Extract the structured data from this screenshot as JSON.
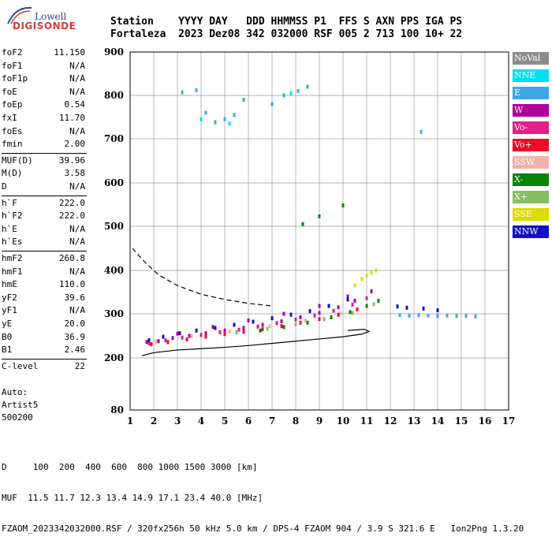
{
  "logo": {
    "top": "Lowell",
    "bottom": "DIGISONDE"
  },
  "header": {
    "row1": "Station    YYYY DAY   DDD HHMMSS P1  FFS S AXN PPS IGA PS",
    "row2": "Fortaleza  2023 Dez08 342 032000 RSF 005 2 713 100 10+ 22"
  },
  "params": [
    {
      "k": "foF2",
      "v": "11.150"
    },
    {
      "k": "foF1",
      "v": "N/A"
    },
    {
      "k": "foF1p",
      "v": "N/A"
    },
    {
      "k": "foE",
      "v": "N/A"
    },
    {
      "k": "foEp",
      "v": "0.54"
    },
    {
      "k": "fxI",
      "v": "11.70"
    },
    {
      "k": "foEs",
      "v": "N/A"
    },
    {
      "k": "fmin",
      "v": "2.00"
    },
    {
      "k": "MUF(D)",
      "v": "39.96"
    },
    {
      "k": "M(D)",
      "v": "3.58"
    },
    {
      "k": "D",
      "v": "N/A"
    },
    {
      "k": "h`F",
      "v": "222.0"
    },
    {
      "k": "h`F2",
      "v": "222.0"
    },
    {
      "k": "h`E",
      "v": "N/A"
    },
    {
      "k": "h`Es",
      "v": "N/A"
    },
    {
      "k": "hmF2",
      "v": "260.8"
    },
    {
      "k": "hmF1",
      "v": "N/A"
    },
    {
      "k": "hmE",
      "v": "110.0"
    },
    {
      "k": "yF2",
      "v": "39.6"
    },
    {
      "k": "yF1",
      "v": "N/A"
    },
    {
      "k": "yE",
      "v": "20.0"
    },
    {
      "k": "B0",
      "v": "36.9"
    },
    {
      "k": "B1",
      "v": "2.46"
    },
    {
      "k": "C-level",
      "v": "22"
    }
  ],
  "auto": {
    "line1": "Auto:",
    "line2": "Artist5",
    "line3": "500200"
  },
  "legend": [
    {
      "label": "NoVal",
      "color": "#8c8c8c"
    },
    {
      "label": "NNE",
      "color": "#00e0f0"
    },
    {
      "label": "E",
      "color": "#3fa6e6"
    },
    {
      "label": "W",
      "color": "#b0009c"
    },
    {
      "label": "Vo-",
      "color": "#e0208c"
    },
    {
      "label": "Vo+",
      "color": "#f00a26"
    },
    {
      "label": "SSW",
      "color": "#f4b0aa"
    },
    {
      "label": "X-",
      "color": "#08840a"
    },
    {
      "label": "X+",
      "color": "#88bc60"
    },
    {
      "label": "SSE",
      "color": "#dcdc00"
    },
    {
      "label": "NNW",
      "color": "#1010c8"
    }
  ],
  "footer": {
    "line1": "D     100  200  400  600  800 1000 1500 3000 [km]",
    "line2": "MUF  11.5 11.7 12.3 13.4 14.9 17.1 23.4 40.0 [MHz]",
    "line3": "FZAOM_2023342032000.RSF / 320fx256h 50 kHz 5.0 km / DPS-4 FZAOM 904 / 3.9 S 321.6 E   Ion2Png 1.3.20"
  },
  "chart_data": {
    "type": "scatter",
    "title": "",
    "xlabel": "",
    "ylabel": "",
    "xlim": [
      1,
      17
    ],
    "x_ticks": [
      1,
      2,
      3,
      4,
      5,
      6,
      7,
      8,
      9,
      10,
      11,
      12,
      13,
      14,
      15,
      16,
      17
    ],
    "y_ticks": [
      80,
      200,
      300,
      400,
      500,
      600,
      700,
      800,
      900
    ],
    "ylim": [
      80,
      900
    ],
    "y_scale": "nonlinear (virtual height, km)",
    "grid": true,
    "series": [
      {
        "name": "W",
        "color": "#b0009c",
        "points": [
          [
            1.7,
            236
          ],
          [
            2.2,
            238
          ],
          [
            2.8,
            245
          ],
          [
            3.5,
            250
          ],
          [
            4.2,
            256
          ],
          [
            5.0,
            262
          ],
          [
            5.8,
            268
          ],
          [
            6.6,
            275
          ],
          [
            7.4,
            283
          ],
          [
            8.2,
            292
          ],
          [
            9.0,
            302
          ],
          [
            9.8,
            315
          ],
          [
            10.5,
            330
          ],
          [
            11.2,
            352
          ],
          [
            3.0,
            255
          ],
          [
            4.5,
            270
          ],
          [
            6.0,
            285
          ],
          [
            7.5,
            300
          ],
          [
            9.0,
            318
          ],
          [
            10.2,
            340
          ]
        ]
      },
      {
        "name": "Vo-",
        "color": "#e0208c",
        "points": [
          [
            1.8,
            233
          ],
          [
            2.5,
            240
          ],
          [
            3.2,
            246
          ],
          [
            4.0,
            252
          ],
          [
            4.8,
            258
          ],
          [
            5.6,
            264
          ],
          [
            6.4,
            271
          ],
          [
            7.2,
            279
          ],
          [
            8.0,
            287
          ],
          [
            8.8,
            296
          ],
          [
            9.6,
            307
          ],
          [
            10.4,
            321
          ],
          [
            11.0,
            336
          ]
        ]
      },
      {
        "name": "Vo+",
        "color": "#f00a26",
        "points": [
          [
            1.9,
            231
          ],
          [
            2.6,
            236
          ],
          [
            3.4,
            242
          ],
          [
            4.2,
            248
          ],
          [
            5.0,
            254
          ],
          [
            5.8,
            259
          ],
          [
            6.6,
            265
          ],
          [
            7.4,
            272
          ],
          [
            8.2,
            280
          ],
          [
            9.0,
            288
          ],
          [
            9.8,
            298
          ],
          [
            10.6,
            310
          ]
        ]
      },
      {
        "name": "NNW",
        "color": "#1010c8",
        "points": [
          [
            1.8,
            240
          ],
          [
            2.4,
            248
          ],
          [
            3.1,
            256
          ],
          [
            3.8,
            262
          ],
          [
            4.6,
            268
          ],
          [
            5.4,
            275
          ],
          [
            6.2,
            282
          ],
          [
            7.0,
            290
          ],
          [
            7.8,
            298
          ],
          [
            8.6,
            306
          ],
          [
            9.4,
            318
          ],
          [
            10.2,
            333
          ],
          [
            12.3,
            317
          ],
          [
            12.7,
            314
          ],
          [
            13.4,
            312
          ],
          [
            14.0,
            308
          ]
        ]
      },
      {
        "name": "X-",
        "color": "#08840a",
        "points": [
          [
            6.5,
            262
          ],
          [
            7.5,
            270
          ],
          [
            8.5,
            280
          ],
          [
            9.5,
            292
          ],
          [
            10.3,
            304
          ],
          [
            11.0,
            318
          ],
          [
            11.5,
            330
          ],
          [
            10.0,
            548
          ],
          [
            9.0,
            523
          ],
          [
            8.3,
            505
          ]
        ]
      },
      {
        "name": "X+",
        "color": "#88bc60",
        "points": [
          [
            5.5,
            258
          ],
          [
            6.8,
            266
          ],
          [
            8.0,
            276
          ],
          [
            9.2,
            288
          ],
          [
            10.4,
            302
          ],
          [
            11.3,
            322
          ]
        ]
      },
      {
        "name": "SSE",
        "color": "#dcdc00",
        "points": [
          [
            10.5,
            365
          ],
          [
            10.8,
            380
          ],
          [
            11.2,
            395
          ],
          [
            11.4,
            400
          ],
          [
            11.0,
            388
          ]
        ]
      },
      {
        "name": "E",
        "color": "#3fa6e6",
        "points": [
          [
            12.4,
            297
          ],
          [
            12.8,
            296
          ],
          [
            13.2,
            297
          ],
          [
            13.6,
            296
          ],
          [
            14.0,
            295
          ],
          [
            14.4,
            296
          ],
          [
            14.8,
            295
          ],
          [
            15.2,
            295
          ],
          [
            15.6,
            294
          ],
          [
            3.2,
            807
          ],
          [
            3.8,
            812
          ],
          [
            4.2,
            760
          ],
          [
            4.6,
            738
          ],
          [
            5.0,
            745
          ],
          [
            5.4,
            755
          ],
          [
            5.8,
            790
          ],
          [
            7.0,
            780
          ],
          [
            7.5,
            800
          ],
          [
            8.1,
            810
          ],
          [
            8.5,
            820
          ],
          [
            13.3,
            716
          ]
        ]
      },
      {
        "name": "NNE",
        "color": "#00e0f0",
        "points": [
          [
            4.0,
            745
          ],
          [
            5.2,
            735
          ],
          [
            7.8,
            805
          ]
        ]
      },
      {
        "name": "SSW",
        "color": "#f4b0aa",
        "points": [
          [
            2.1,
            237
          ],
          [
            3.6,
            249
          ],
          [
            5.2,
            260
          ],
          [
            6.9,
            272
          ],
          [
            8.4,
            285
          ],
          [
            9.9,
            301
          ]
        ]
      }
    ]
  }
}
